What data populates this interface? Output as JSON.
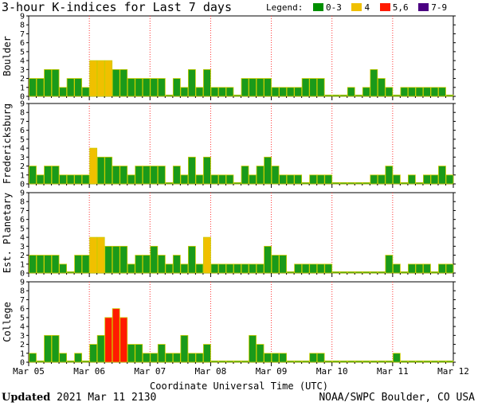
{
  "title": "3-hour K-indices for Last 7 days",
  "legend": {
    "label": "Legend:",
    "items": [
      {
        "label": "0-3",
        "color": "#008f00"
      },
      {
        "label": "4",
        "color": "#f0c000"
      },
      {
        "label": "5,6",
        "color": "#ff1a00"
      },
      {
        "label": "7-9",
        "color": "#4b0082"
      }
    ]
  },
  "colors": {
    "low": "#1a9a1a",
    "mid": "#f0c000",
    "high": "#ff1a00",
    "extreme": "#4b0082",
    "bar_edge": "#cccc00"
  },
  "footer": {
    "updated_label": "Updated",
    "updated_value": "2021 Mar 11 2130",
    "source": "NOAA/SWPC Boulder, CO USA"
  },
  "chart_data": {
    "type": "bar",
    "xlabel": "Coordinate Universal Time (UTC)",
    "x_tick_labels": [
      "Mar 05",
      "Mar 06",
      "Mar 07",
      "Mar 08",
      "Mar 09",
      "Mar 10",
      "Mar 11",
      "Mar 12"
    ],
    "y_tick_labels": [
      "0",
      "1",
      "2",
      "3",
      "4",
      "5",
      "6",
      "7",
      "8",
      "9"
    ],
    "ylim": [
      0,
      9
    ],
    "bins_per_day": 8,
    "color_scale": [
      {
        "range": "0-3",
        "color": "#1a9a1a"
      },
      {
        "range": "4",
        "color": "#f0c000"
      },
      {
        "range": "5,6",
        "color": "#ff1a00"
      },
      {
        "range": "7-9",
        "color": "#4b0082"
      }
    ],
    "panels": [
      {
        "name": "Boulder",
        "values": [
          2,
          2,
          3,
          3,
          1,
          2,
          2,
          1,
          4,
          4,
          4,
          3,
          3,
          2,
          2,
          2,
          2,
          2,
          0,
          2,
          1,
          3,
          1,
          3,
          1,
          1,
          1,
          0,
          2,
          2,
          2,
          2,
          1,
          1,
          1,
          1,
          2,
          2,
          2,
          0,
          0,
          0,
          1,
          0,
          1,
          3,
          2,
          1,
          0,
          1,
          1,
          1,
          1,
          1,
          1,
          0
        ]
      },
      {
        "name": "Fredericksburg",
        "values": [
          2,
          1,
          2,
          2,
          1,
          1,
          1,
          1,
          4,
          3,
          3,
          2,
          2,
          1,
          2,
          2,
          2,
          2,
          0,
          2,
          1,
          3,
          1,
          3,
          1,
          1,
          1,
          0,
          2,
          1,
          2,
          3,
          2,
          1,
          1,
          1,
          0,
          1,
          1,
          1,
          0,
          0,
          0,
          0,
          0,
          1,
          1,
          2,
          1,
          0,
          1,
          0,
          1,
          1,
          2,
          1
        ]
      },
      {
        "name": "Est. Planetary",
        "values": [
          2,
          2,
          2,
          2,
          1,
          0,
          2,
          2,
          4,
          4,
          3,
          3,
          3,
          1,
          2,
          2,
          3,
          2,
          1,
          2,
          1,
          3,
          1,
          4,
          1,
          1,
          1,
          1,
          1,
          1,
          1,
          3,
          2,
          2,
          0,
          1,
          1,
          1,
          1,
          1,
          0,
          0,
          0,
          0,
          0,
          0,
          0,
          2,
          1,
          0,
          1,
          1,
          1,
          0,
          1,
          1
        ]
      },
      {
        "name": "College",
        "values": [
          1,
          0,
          3,
          3,
          1,
          0,
          1,
          0,
          2,
          3,
          5,
          6,
          5,
          2,
          2,
          1,
          1,
          2,
          1,
          1,
          3,
          1,
          1,
          2,
          0,
          0,
          0,
          0,
          0,
          3,
          2,
          1,
          1,
          1,
          0,
          0,
          0,
          1,
          1,
          0,
          0,
          0,
          0,
          0,
          0,
          0,
          0,
          0,
          1,
          0,
          0,
          0,
          0,
          0,
          0,
          0
        ]
      }
    ]
  }
}
